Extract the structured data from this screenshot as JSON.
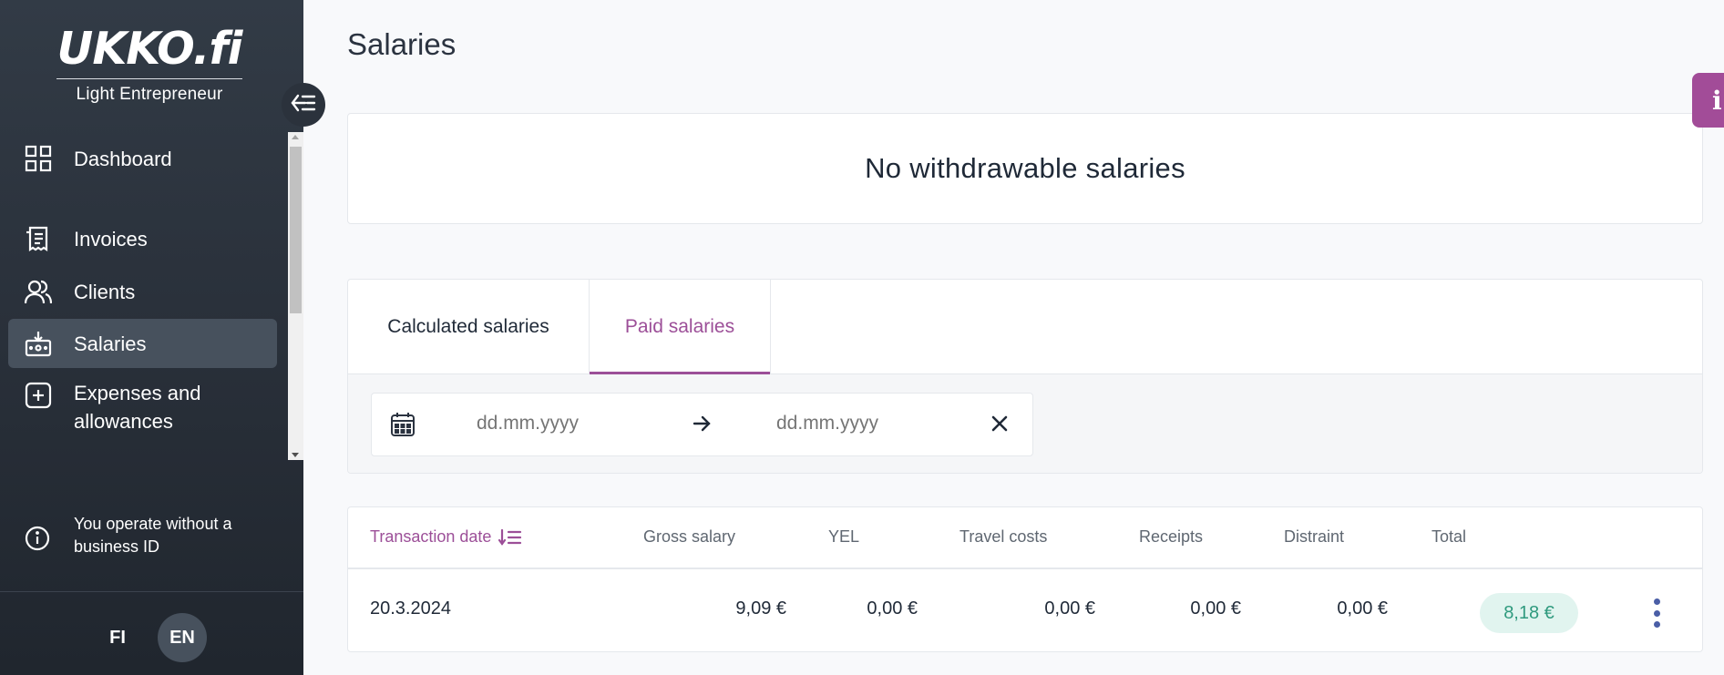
{
  "brand": {
    "logo": "UKKO.fi",
    "subtitle": "Light Entrepreneur"
  },
  "sidebar": {
    "items": [
      {
        "label": "Dashboard",
        "icon": "grid-icon"
      },
      {
        "label": "Invoices",
        "icon": "receipt-icon"
      },
      {
        "label": "Clients",
        "icon": "users-icon"
      },
      {
        "label": "Salaries",
        "icon": "salary-box-icon",
        "active": true
      },
      {
        "label": "Expenses and allowances",
        "icon": "plus-square-icon"
      }
    ],
    "business_info": "You operate without a business ID",
    "languages": [
      "FI",
      "EN"
    ],
    "active_language": "EN"
  },
  "page": {
    "title": "Salaries",
    "no_salaries": "No withdrawable salaries"
  },
  "tabs": {
    "calculated": "Calculated salaries",
    "paid": "Paid salaries",
    "active": "paid"
  },
  "filter": {
    "from_placeholder": "dd.mm.yyyy",
    "to_placeholder": "dd.mm.yyyy"
  },
  "table": {
    "headers": [
      "Transaction date",
      "Gross salary",
      "YEL",
      "Travel costs",
      "Receipts",
      "Distraint",
      "Total"
    ],
    "rows": [
      {
        "date": "20.3.2024",
        "gross": "9,09 €",
        "yel": "0,00 €",
        "travel": "0,00 €",
        "receipts": "0,00 €",
        "distraint": "0,00 €",
        "total": "8,18 €"
      }
    ]
  },
  "colors": {
    "accent": "#9c4f98",
    "sidebar": "#2a313b",
    "total_badge_bg": "#e1f4ef",
    "total_badge_text": "#2f9a7e"
  }
}
